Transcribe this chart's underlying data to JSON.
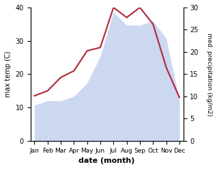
{
  "months": [
    "Jan",
    "Feb",
    "Mar",
    "Apr",
    "May",
    "Jun",
    "Jul",
    "Aug",
    "Sep",
    "Oct",
    "Nov",
    "Dec"
  ],
  "max_temp": [
    13.5,
    15,
    19,
    21,
    27,
    28,
    40,
    37,
    40,
    35,
    22,
    13
  ],
  "med_precip": [
    8,
    9,
    9,
    10,
    13,
    19,
    29,
    26,
    26,
    27,
    23,
    9
  ],
  "temp_ylim": [
    0,
    40
  ],
  "precip_ylim": [
    0,
    30
  ],
  "fill_color": "#afc4e8",
  "fill_alpha": 0.65,
  "line_color": "#b03040",
  "line_width": 1.6,
  "ylabel_left": "max temp (C)",
  "ylabel_right": "med. precipitation (kg/m2)",
  "xlabel": "date (month)",
  "left_ticks": [
    0,
    10,
    20,
    30,
    40
  ],
  "right_ticks": [
    0,
    5,
    10,
    15,
    20,
    25,
    30
  ],
  "bg_color": "#ffffff"
}
